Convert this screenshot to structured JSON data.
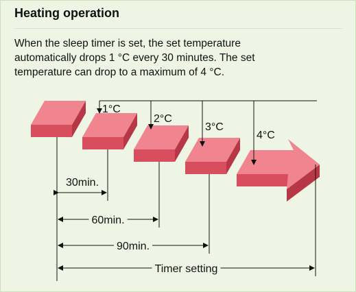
{
  "header": {
    "title": "Heating operation"
  },
  "description": [
    "When the sleep timer is set, the set temperature",
    "automatically drops 1 °C every 30 minutes. The set",
    "temperature can drop to a maximum of 4 °C."
  ],
  "diagram": {
    "drops": [
      "1°C",
      "2°C",
      "3°C",
      "4°C"
    ],
    "durations": [
      "30min.",
      "60min.",
      "90min.",
      "Timer setting"
    ]
  }
}
